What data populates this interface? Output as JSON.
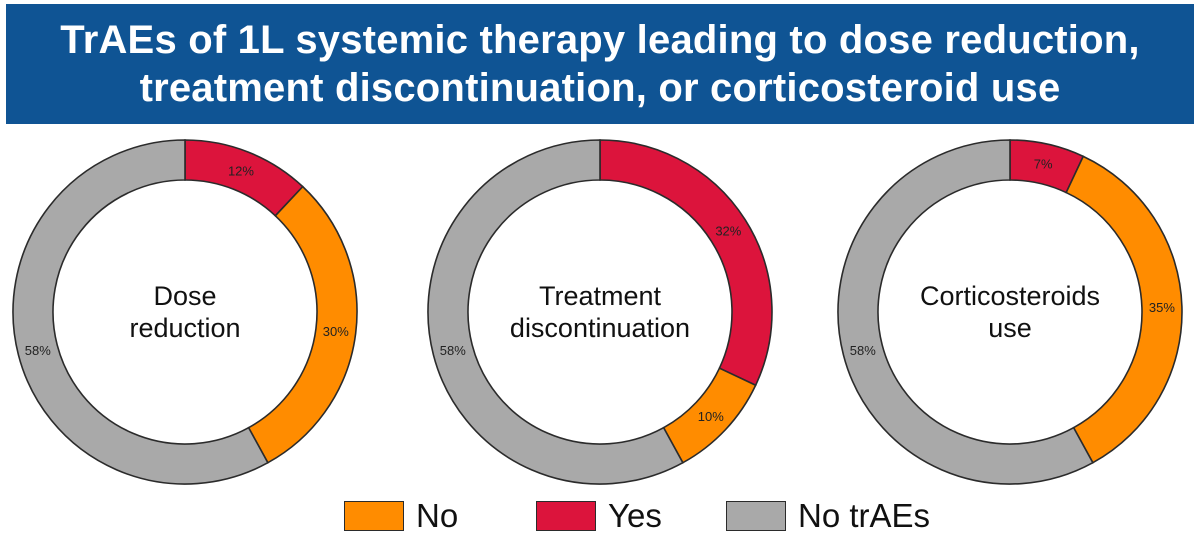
{
  "title": {
    "line1": "TrAEs of 1L systemic therapy leading to dose reduction,",
    "line2": "treatment discontinuation, or corticosteroid use"
  },
  "colors": {
    "No": "#ff8c00",
    "Yes": "#dc143c",
    "No trAEs": "#a9a9a9"
  },
  "legend": [
    {
      "key": "No",
      "label": "No"
    },
    {
      "key": "Yes",
      "label": "Yes"
    },
    {
      "key": "No trAEs",
      "label": "No trAEs"
    }
  ],
  "chart_data": [
    {
      "type": "pie",
      "variant": "donut",
      "center_label": [
        "Dose",
        "reduction"
      ],
      "slices": [
        {
          "category": "Yes",
          "value": 12,
          "label": "12%"
        },
        {
          "category": "No",
          "value": 30,
          "label": "30%"
        },
        {
          "category": "No trAEs",
          "value": 58,
          "label": "58%"
        }
      ]
    },
    {
      "type": "pie",
      "variant": "donut",
      "center_label": [
        "Treatment",
        "discontinuation"
      ],
      "slices": [
        {
          "category": "Yes",
          "value": 32,
          "label": "32%"
        },
        {
          "category": "No",
          "value": 10,
          "label": "10%"
        },
        {
          "category": "No trAEs",
          "value": 58,
          "label": "58%"
        }
      ]
    },
    {
      "type": "pie",
      "variant": "donut",
      "center_label": [
        "Corticosteroids",
        "use"
      ],
      "slices": [
        {
          "category": "Yes",
          "value": 7,
          "label": "7%"
        },
        {
          "category": "No",
          "value": 35,
          "label": "35%"
        },
        {
          "category": "No trAEs",
          "value": 58,
          "label": "58%"
        }
      ]
    }
  ]
}
